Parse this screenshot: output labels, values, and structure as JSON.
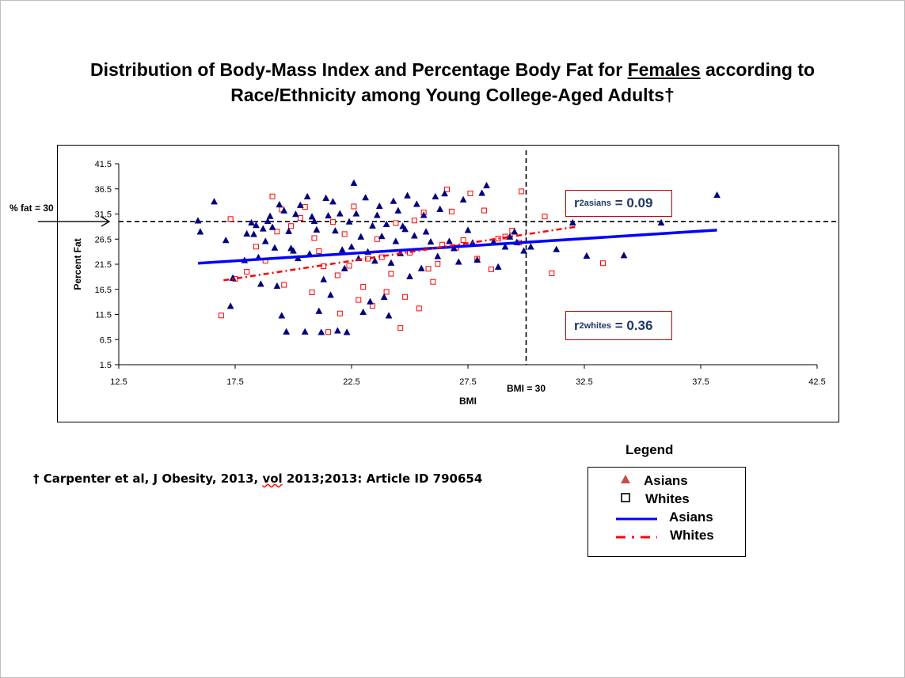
{
  "title_part1": "Distribution of Body-Mass Index and Percentage Body Fat for ",
  "title_underlined": "Females",
  "title_part2": " according to",
  "title_line2": "Race/Ethnicity among Young College-Aged Adults†",
  "footnote": {
    "prefix": "† Carpenter et al, J Obesity, 2013, ",
    "squiggle_word": "vol",
    "suffix": " 2013;2013: Article ID 790654"
  },
  "annotations": {
    "fat_line_label": "% fat = 30",
    "bmi_line_label": "BMI = 30",
    "r2_asians": {
      "r": "r",
      "sup": "2",
      "sub": "asians",
      "eq": " = 0.09"
    },
    "r2_whites": {
      "r": "r",
      "sup": "2",
      "sub": "whites",
      "eq": " = 0.36"
    }
  },
  "legend": {
    "title": "Legend",
    "items": [
      {
        "label": "Asians",
        "marker": "triangle"
      },
      {
        "label": "Whites",
        "marker": "square"
      },
      {
        "label": "Asians",
        "marker": "solid-line"
      },
      {
        "label": "Whites",
        "marker": "dash-dot-line"
      }
    ]
  },
  "colors": {
    "asians": "#000080",
    "whites": "#ff0000",
    "asians_line": "#0000ff",
    "whites_line": "#ff0000",
    "r2_text": "#1f3864",
    "r2_border": "#c00000"
  },
  "chart_data": {
    "type": "scatter",
    "title": "Distribution of Body-Mass Index and Percentage Body Fat for Females according to Race/Ethnicity among Young College-Aged Adults†",
    "xlabel": "BMI",
    "ylabel": "Percent Fat",
    "xlim": [
      12.5,
      42.5
    ],
    "ylim": [
      1.5,
      41.5
    ],
    "xticks": [
      "12.5",
      "17.5",
      "22.5",
      "27.5",
      "32.5",
      "37.5",
      "42.5"
    ],
    "yticks": [
      "41.5",
      "36.5",
      "31.5",
      "26.5",
      "21.5",
      "16.5",
      "11.5",
      "6.5",
      "1.5"
    ],
    "reference_lines": {
      "x": 30,
      "y": 30
    },
    "grid": false,
    "legend_position": "outside-bottom-right",
    "series": [
      {
        "name": "Asians",
        "marker": "triangle",
        "points": [
          [
            15.9,
            30.2
          ],
          [
            16.0,
            28.0
          ],
          [
            16.6,
            34.0
          ],
          [
            17.1,
            26.3
          ],
          [
            17.3,
            13.2
          ],
          [
            17.4,
            18.8
          ],
          [
            17.9,
            22.3
          ],
          [
            18.0,
            27.6
          ],
          [
            18.2,
            29.8
          ],
          [
            18.3,
            27.5
          ],
          [
            18.4,
            29.3
          ],
          [
            18.5,
            22.9
          ],
          [
            18.6,
            17.6
          ],
          [
            18.7,
            28.6
          ],
          [
            18.8,
            26.1
          ],
          [
            18.9,
            30.1
          ],
          [
            19.0,
            31.1
          ],
          [
            19.1,
            28.9
          ],
          [
            19.2,
            24.8
          ],
          [
            19.3,
            17.2
          ],
          [
            19.4,
            33.4
          ],
          [
            19.5,
            11.3
          ],
          [
            19.6,
            32.2
          ],
          [
            19.7,
            8.1
          ],
          [
            19.8,
            28.1
          ],
          [
            19.9,
            24.7
          ],
          [
            20.0,
            24.2
          ],
          [
            20.1,
            31.5
          ],
          [
            20.2,
            22.7
          ],
          [
            20.3,
            33.3
          ],
          [
            20.5,
            8.1
          ],
          [
            20.6,
            35.0
          ],
          [
            20.7,
            23.6
          ],
          [
            20.8,
            31.0
          ],
          [
            20.9,
            30.1
          ],
          [
            21.0,
            28.4
          ],
          [
            21.1,
            12.2
          ],
          [
            21.2,
            8.0
          ],
          [
            21.3,
            18.5
          ],
          [
            21.4,
            34.7
          ],
          [
            21.5,
            31.2
          ],
          [
            21.6,
            15.4
          ],
          [
            21.7,
            34.0
          ],
          [
            21.8,
            28.2
          ],
          [
            21.9,
            8.3
          ],
          [
            22.0,
            31.6
          ],
          [
            22.1,
            24.4
          ],
          [
            22.2,
            20.7
          ],
          [
            22.3,
            8.0
          ],
          [
            22.4,
            30.0
          ],
          [
            22.5,
            25.0
          ],
          [
            22.6,
            37.7
          ],
          [
            22.7,
            31.6
          ],
          [
            22.8,
            22.7
          ],
          [
            22.9,
            27.0
          ],
          [
            23.0,
            12.0
          ],
          [
            23.1,
            34.8
          ],
          [
            23.2,
            24.0
          ],
          [
            23.3,
            14.1
          ],
          [
            23.4,
            29.2
          ],
          [
            23.5,
            22.2
          ],
          [
            23.6,
            31.3
          ],
          [
            23.7,
            33.1
          ],
          [
            23.8,
            27.1
          ],
          [
            23.9,
            15.0
          ],
          [
            24.0,
            29.5
          ],
          [
            24.1,
            11.3
          ],
          [
            24.2,
            21.8
          ],
          [
            24.3,
            34.1
          ],
          [
            24.4,
            26.1
          ],
          [
            24.5,
            32.2
          ],
          [
            24.6,
            23.7
          ],
          [
            24.7,
            29.1
          ],
          [
            24.8,
            28.5
          ],
          [
            24.9,
            35.2
          ],
          [
            25.0,
            19.1
          ],
          [
            25.2,
            27.2
          ],
          [
            25.3,
            33.5
          ],
          [
            25.5,
            20.7
          ],
          [
            25.6,
            31.3
          ],
          [
            25.7,
            28.0
          ],
          [
            25.9,
            26.0
          ],
          [
            26.1,
            35.0
          ],
          [
            26.2,
            23.1
          ],
          [
            26.3,
            32.5
          ],
          [
            26.5,
            35.6
          ],
          [
            26.7,
            26.1
          ],
          [
            26.9,
            24.7
          ],
          [
            27.1,
            22.0
          ],
          [
            27.3,
            34.4
          ],
          [
            27.5,
            28.3
          ],
          [
            27.7,
            25.8
          ],
          [
            27.9,
            22.4
          ],
          [
            28.1,
            35.7
          ],
          [
            28.3,
            37.2
          ],
          [
            28.6,
            26.0
          ],
          [
            28.8,
            21.0
          ],
          [
            29.1,
            25.0
          ],
          [
            29.3,
            27.0
          ],
          [
            29.5,
            28.0
          ],
          [
            29.6,
            25.9
          ],
          [
            29.9,
            24.2
          ],
          [
            30.2,
            25.0
          ],
          [
            31.3,
            24.5
          ],
          [
            32.0,
            29.8
          ],
          [
            32.6,
            23.2
          ],
          [
            34.2,
            23.3
          ],
          [
            35.8,
            29.8
          ],
          [
            38.2,
            35.3
          ]
        ]
      },
      {
        "name": "Whites",
        "marker": "square",
        "points": [
          [
            16.9,
            11.3
          ],
          [
            17.3,
            30.5
          ],
          [
            17.5,
            18.6
          ],
          [
            18.0,
            20.0
          ],
          [
            18.4,
            25.0
          ],
          [
            18.8,
            22.2
          ],
          [
            19.1,
            35.0
          ],
          [
            19.3,
            28.0
          ],
          [
            19.5,
            32.4
          ],
          [
            19.6,
            17.4
          ],
          [
            19.9,
            29.1
          ],
          [
            20.3,
            30.7
          ],
          [
            20.5,
            32.9
          ],
          [
            20.8,
            15.9
          ],
          [
            20.9,
            26.7
          ],
          [
            21.1,
            24.1
          ],
          [
            21.3,
            21.1
          ],
          [
            21.5,
            8.0
          ],
          [
            21.7,
            29.9
          ],
          [
            21.9,
            19.3
          ],
          [
            22.0,
            11.7
          ],
          [
            22.2,
            27.5
          ],
          [
            22.4,
            21.2
          ],
          [
            22.6,
            33.0
          ],
          [
            22.8,
            14.4
          ],
          [
            23.0,
            17.0
          ],
          [
            23.2,
            22.6
          ],
          [
            23.4,
            13.2
          ],
          [
            23.6,
            26.5
          ],
          [
            23.8,
            22.9
          ],
          [
            24.0,
            16.0
          ],
          [
            24.2,
            19.6
          ],
          [
            24.4,
            29.7
          ],
          [
            24.6,
            8.8
          ],
          [
            24.8,
            15.0
          ],
          [
            25.0,
            23.8
          ],
          [
            25.2,
            30.2
          ],
          [
            25.4,
            12.7
          ],
          [
            25.6,
            31.8
          ],
          [
            25.8,
            20.6
          ],
          [
            26.0,
            18.0
          ],
          [
            26.2,
            21.6
          ],
          [
            26.4,
            25.4
          ],
          [
            26.6,
            36.4
          ],
          [
            26.8,
            32.0
          ],
          [
            27.0,
            24.8
          ],
          [
            27.3,
            26.3
          ],
          [
            27.6,
            35.6
          ],
          [
            27.9,
            22.6
          ],
          [
            28.2,
            32.2
          ],
          [
            28.5,
            20.5
          ],
          [
            28.8,
            26.6
          ],
          [
            29.1,
            27.0
          ],
          [
            29.4,
            28.2
          ],
          [
            29.7,
            25.8
          ],
          [
            29.8,
            36.0
          ],
          [
            30.8,
            31.0
          ],
          [
            31.1,
            19.7
          ],
          [
            33.3,
            21.7
          ]
        ]
      },
      {
        "name": "Asians",
        "type": "line",
        "style": "solid",
        "x": [
          15.9,
          38.2
        ],
        "y": [
          21.7,
          28.3
        ]
      },
      {
        "name": "Whites",
        "type": "line",
        "style": "dash-dot",
        "x": [
          17.0,
          32.2
        ],
        "y": [
          18.3,
          29.0
        ]
      }
    ]
  }
}
